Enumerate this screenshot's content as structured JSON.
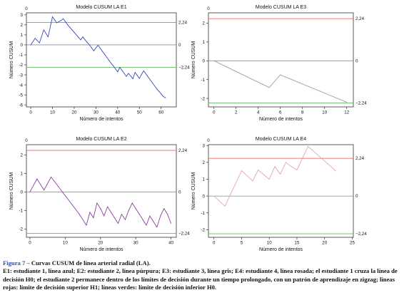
{
  "chart_data": [
    {
      "id": "E1",
      "type": "line",
      "title": "Modelo CUSUM LA E1",
      "xlabel": "Número de intentos",
      "ylabel": "Número CUSUM",
      "xlim": [
        -2,
        67
      ],
      "ylim": [
        -6.2,
        3.2
      ],
      "xticks": [
        "0",
        "10",
        "20",
        "30",
        "40",
        "50",
        "60"
      ],
      "xtick_values": [
        0,
        10,
        20,
        30,
        40,
        50,
        60
      ],
      "yticks": [
        "3",
        "2",
        "1",
        "0",
        "-1",
        "-2",
        "-3",
        "-4",
        "-5",
        "-6"
      ],
      "ytick_values": [
        3,
        2,
        1,
        0,
        -1,
        -2,
        -3,
        -4,
        -5,
        -6
      ],
      "top_label": "0",
      "h1": 2.24,
      "h1_label": "2,24",
      "zero_label": "0",
      "h0": -2.24,
      "h0_label": "−2,24",
      "line_color": "#3b4cc0",
      "series": [
        {
          "x": [
            0,
            2,
            4,
            6,
            8,
            10,
            11,
            12,
            14,
            15,
            16,
            17,
            18,
            19,
            20,
            21,
            22,
            23,
            24,
            25,
            26,
            27,
            28,
            29,
            30,
            31,
            32,
            33,
            34,
            35,
            36,
            37,
            38,
            39,
            40,
            41,
            42,
            43,
            44,
            45,
            46,
            47,
            48,
            49,
            50,
            51,
            52,
            53,
            54,
            55,
            56,
            57,
            58,
            59,
            60,
            61,
            62
          ],
          "y": [
            0,
            0.65,
            0.2,
            1.5,
            0.8,
            2.8,
            2.5,
            2.2,
            2.45,
            2.6,
            2.3,
            2.0,
            1.75,
            1.5,
            1.25,
            1.0,
            0.75,
            0.5,
            0.8,
            0.5,
            0.25,
            0,
            -0.3,
            -0.6,
            -0.3,
            -0.05,
            -0.35,
            -0.65,
            -0.95,
            -1.25,
            -1.55,
            -1.85,
            -2.1,
            -2.4,
            -2.7,
            -2.25,
            -2.55,
            -2.85,
            -3.15,
            -2.85,
            -3.1,
            -3.4,
            -2.75,
            -3.05,
            -3.35,
            -2.95,
            -2.6,
            -2.9,
            -3.2,
            -3.5,
            -3.8,
            -4.1,
            -4.4,
            -4.65,
            -4.9,
            -5.15,
            -5.3
          ]
        }
      ]
    },
    {
      "id": "E3",
      "type": "line",
      "title": "Modelo CUSUM LA E3",
      "xlabel": "Número de intentos",
      "ylabel": "Número CUSUM",
      "xlim": [
        -0.5,
        12.6
      ],
      "ylim": [
        -2.45,
        2.55
      ],
      "xticks": [
        "0",
        "2",
        "4",
        "6",
        "8",
        "10",
        "12"
      ],
      "xtick_values": [
        0,
        2,
        4,
        6,
        8,
        10,
        12
      ],
      "yticks": [
        "2",
        "1",
        "0",
        "-1",
        "-2"
      ],
      "ytick_values": [
        2,
        1,
        0,
        -1,
        -2
      ],
      "top_label": "0",
      "h1": 2.24,
      "h1_label": "2,24",
      "zero_label": "0",
      "h0": -2.24,
      "h0_label": "−2,24",
      "line_color": "#a0a0a0",
      "series": [
        {
          "x": [
            0,
            5,
            6,
            12
          ],
          "y": [
            0,
            -1.42,
            -0.75,
            -2.2
          ]
        }
      ]
    },
    {
      "id": "E2",
      "type": "line",
      "title": "Modelo CUSUM LA E2",
      "xlabel": "Número de intentos",
      "ylabel": "Número CUSUM",
      "xlim": [
        -1,
        41.5
      ],
      "ylim": [
        -2.45,
        2.55
      ],
      "xticks": [
        "0",
        "10",
        "20",
        "30",
        "40"
      ],
      "xtick_values": [
        0,
        10,
        20,
        30,
        40
      ],
      "yticks": [
        "2",
        "1",
        "0",
        "-1",
        "-2"
      ],
      "ytick_values": [
        2,
        1,
        0,
        -1,
        -2
      ],
      "top_label": "0",
      "h1": 2.24,
      "h1_label": "2,24",
      "zero_label": "0",
      "h0": -2.24,
      "h0_label": "−2,24",
      "line_color": "#8a3fa0",
      "series": [
        {
          "x": [
            0,
            2,
            4,
            6,
            8,
            10,
            12,
            14,
            16,
            17,
            18,
            19,
            20,
            21,
            22,
            23,
            24,
            25,
            26,
            27,
            28,
            29,
            30,
            31,
            32,
            33,
            34,
            35,
            36,
            37,
            38,
            39,
            40
          ],
          "y": [
            0,
            0.7,
            0.1,
            0.8,
            0.3,
            -0.2,
            -0.7,
            -1.2,
            -1.8,
            -1.1,
            -1.4,
            -0.6,
            -0.9,
            -1.3,
            -0.8,
            -1.1,
            -1.4,
            -1.7,
            -1.2,
            -1.5,
            -1.0,
            -0.6,
            -0.9,
            -1.2,
            -1.5,
            -1.8,
            -1.3,
            -1.6,
            -1.9,
            -1.3,
            -0.9,
            -1.2,
            -1.7
          ]
        }
      ]
    },
    {
      "id": "E4",
      "type": "line",
      "title": "Modelo CUSUM LA E4",
      "xlabel": "Número de intentos",
      "ylabel": "Número CUSUM",
      "xlim": [
        -1,
        25.2
      ],
      "ylim": [
        -2.45,
        3.05
      ],
      "xticks": [
        "0",
        "5",
        "10",
        "15",
        "20",
        "25"
      ],
      "xtick_values": [
        0,
        5,
        10,
        15,
        20,
        25
      ],
      "yticks": [
        "3",
        "2",
        "1",
        "0",
        "-1",
        "-2"
      ],
      "ytick_values": [
        3,
        2,
        1,
        0,
        -1,
        -2
      ],
      "top_label": "0",
      "h1": 2.24,
      "h1_label": "2,24",
      "zero_label": "0",
      "h0": -2.24,
      "h0_label": "−2,24",
      "line_color": "#e2a3bd",
      "series": [
        {
          "x": [
            0,
            2,
            5,
            7,
            8,
            10,
            11,
            12,
            13,
            14,
            15,
            17,
            22
          ],
          "y": [
            0,
            -0.6,
            1.5,
            0.9,
            1.55,
            1.0,
            1.75,
            1.3,
            2.0,
            1.75,
            1.55,
            2.95,
            1.5
          ]
        }
      ]
    }
  ],
  "caption": {
    "label": "Figura 7 –",
    "title": "Curvas CUSUM de línea arterial radial (LA).",
    "body": "E1: estudiante 1, línea azul; E2: estudiante 2, línea púrpura; E3: estudiante 3, línea gris; E4: estudiante 4, línea rosada; el estudiante 1 cruza la línea de decisión H0; el estudiante 2 permanece dentro de los límites de decisión durante un tiempo prolongado, con un patrón de aprendizaje en zigzag; líneas rojas: límite de decisión superior H1; líneas verdes: límite de decisión inferior H0."
  }
}
